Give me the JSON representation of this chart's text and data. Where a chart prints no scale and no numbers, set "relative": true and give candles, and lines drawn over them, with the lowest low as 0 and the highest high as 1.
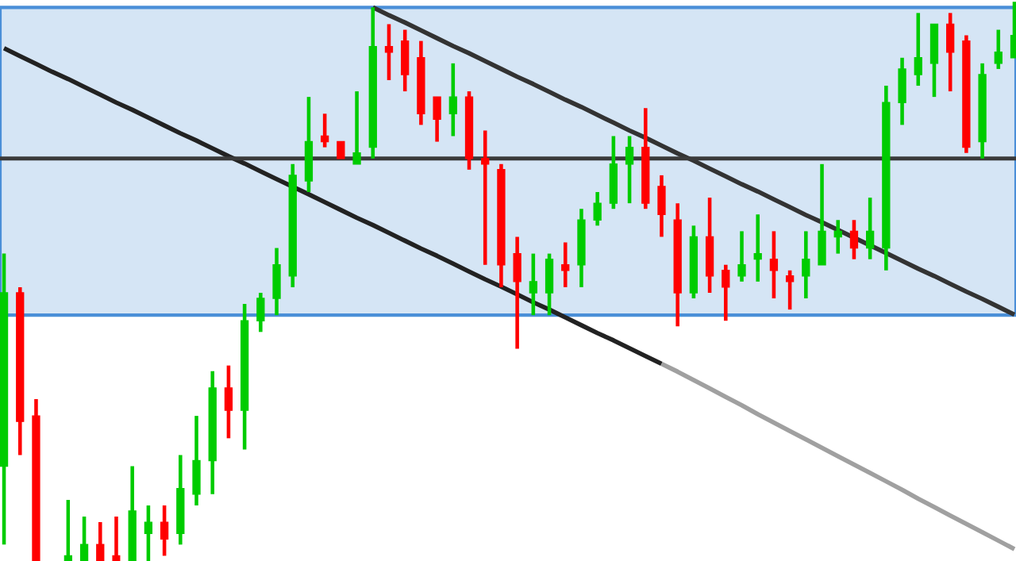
{
  "chart_data": {
    "type": "candlestick",
    "relative": true,
    "categories": [
      null,
      null,
      null,
      null,
      null,
      null,
      null,
      null,
      null,
      null,
      null,
      null,
      null,
      null,
      null,
      null,
      null,
      null,
      null,
      null,
      null,
      null,
      null,
      null,
      null,
      null,
      null,
      null,
      null,
      null,
      null,
      null,
      null,
      null,
      null,
      null,
      null,
      null,
      null,
      null,
      null,
      null,
      null,
      null,
      null,
      null,
      null,
      null,
      null,
      null,
      null,
      null,
      null,
      null,
      null,
      null,
      null,
      null,
      null,
      null,
      null,
      null,
      null,
      null
    ],
    "ohlc": [
      [
        0.17,
        0.55,
        0.03,
        0.48
      ],
      [
        0.48,
        0.49,
        0.19,
        0.25
      ],
      [
        0.26,
        0.29,
        0,
        0
      ],
      null,
      [
        0,
        0.11,
        0,
        0.01
      ],
      [
        0,
        0.08,
        0,
        0.03
      ],
      [
        0.03,
        0.07,
        0,
        0
      ],
      [
        0.01,
        0.08,
        0,
        0
      ],
      [
        0,
        0.17,
        0,
        0.09
      ],
      [
        0.05,
        0.1,
        0,
        0.07
      ],
      [
        0.07,
        0.1,
        0.01,
        0.04
      ],
      [
        0.05,
        0.19,
        0.03,
        0.13
      ],
      [
        0.12,
        0.26,
        0.1,
        0.18
      ],
      [
        0.18,
        0.34,
        0.12,
        0.31
      ],
      [
        0.31,
        0.35,
        0.22,
        0.27
      ],
      [
        0.27,
        0.46,
        0.2,
        0.43
      ],
      [
        0.43,
        0.48,
        0.41,
        0.47
      ],
      [
        0.47,
        0.56,
        0.44,
        0.53
      ],
      [
        0.51,
        0.71,
        0.49,
        0.69
      ],
      [
        0.68,
        0.83,
        0.66,
        0.75
      ],
      [
        0.76,
        0.8,
        0.74,
        0.75
      ],
      [
        0.75,
        0.75,
        0.72,
        0.72
      ],
      [
        0.71,
        0.84,
        0.71,
        0.73
      ],
      [
        0.74,
        0.99,
        0.72,
        0.92
      ],
      [
        0.92,
        0.96,
        0.86,
        0.91
      ],
      [
        0.93,
        0.95,
        0.84,
        0.87
      ],
      [
        0.9,
        0.93,
        0.78,
        0.8
      ],
      [
        0.83,
        0.83,
        0.75,
        0.79
      ],
      [
        0.8,
        0.89,
        0.76,
        0.83
      ],
      [
        0.83,
        0.84,
        0.7,
        0.72
      ],
      [
        0.72,
        0.77,
        0.53,
        0.71
      ],
      [
        0.7,
        0.71,
        0.49,
        0.53
      ],
      [
        0.55,
        0.58,
        0.38,
        0.5
      ],
      [
        0.48,
        0.55,
        0.44,
        0.5
      ],
      [
        0.48,
        0.55,
        0.44,
        0.54
      ],
      [
        0.53,
        0.57,
        0.49,
        0.52
      ],
      [
        0.53,
        0.63,
        0.49,
        0.61
      ],
      [
        0.61,
        0.66,
        0.6,
        0.64
      ],
      [
        0.64,
        0.76,
        0.63,
        0.71
      ],
      [
        0.71,
        0.76,
        0.64,
        0.74
      ],
      [
        0.74,
        0.81,
        0.63,
        0.64
      ],
      [
        0.67,
        0.69,
        0.58,
        0.62
      ],
      [
        0.61,
        0.64,
        0.42,
        0.48
      ],
      [
        0.48,
        0.6,
        0.47,
        0.58
      ],
      [
        0.58,
        0.65,
        0.48,
        0.51
      ],
      [
        0.52,
        0.53,
        0.43,
        0.49
      ],
      [
        0.51,
        0.59,
        0.5,
        0.53
      ],
      [
        0.54,
        0.62,
        0.5,
        0.55
      ],
      [
        0.54,
        0.59,
        0.47,
        0.52
      ],
      [
        0.51,
        0.52,
        0.45,
        0.5
      ],
      [
        0.51,
        0.59,
        0.47,
        0.54
      ],
      [
        0.53,
        0.71,
        0.53,
        0.59
      ],
      [
        0.58,
        0.61,
        0.55,
        0.59
      ],
      [
        0.59,
        0.61,
        0.54,
        0.56
      ],
      [
        0.56,
        0.65,
        0.54,
        0.59
      ],
      [
        0.56,
        0.85,
        0.52,
        0.82
      ],
      [
        0.82,
        0.9,
        0.78,
        0.88
      ],
      [
        0.87,
        0.98,
        0.85,
        0.9
      ],
      [
        0.89,
        0.96,
        0.83,
        0.96
      ],
      [
        0.96,
        0.98,
        0.84,
        0.91
      ],
      [
        0.93,
        0.94,
        0.73,
        0.74
      ],
      [
        0.75,
        0.89,
        0.72,
        0.87
      ],
      [
        0.89,
        0.95,
        0.88,
        0.91
      ],
      [
        0.9,
        1.0,
        0.9,
        0.94
      ]
    ],
    "colors": [
      "#00cc00",
      "#ff0000",
      "#ff0000",
      null,
      "#00cc00",
      "#00cc00",
      "#ff0000",
      "#ff0000",
      "#00cc00",
      "#00cc00",
      "#ff0000",
      "#00cc00",
      "#00cc00",
      "#00cc00",
      "#ff0000",
      "#00cc00",
      "#00cc00",
      "#00cc00",
      "#00cc00",
      "#00cc00",
      "#ff0000",
      "#ff0000",
      "#00cc00",
      "#00cc00",
      "#ff0000",
      "#ff0000",
      "#ff0000",
      "#ff0000",
      "#00cc00",
      "#ff0000",
      "#ff0000",
      "#ff0000",
      "#ff0000",
      "#00cc00",
      "#00cc00",
      "#ff0000",
      "#00cc00",
      "#00cc00",
      "#00cc00",
      "#00cc00",
      "#ff0000",
      "#ff0000",
      "#ff0000",
      "#00cc00",
      "#ff0000",
      "#ff0000",
      "#00cc00",
      "#00cc00",
      "#ff0000",
      "#ff0000",
      "#00cc00",
      "#00cc00",
      "#00cc00",
      "#ff0000",
      "#00cc00",
      "#00cc00",
      "#00cc00",
      "#00cc00",
      "#00cc00",
      "#ff0000",
      "#ff0000",
      "#00cc00",
      "#00cc00",
      "#00cc00"
    ],
    "series": [
      {
        "type": "line",
        "color": "#222222",
        "values": [
          0.917,
          0.903,
          0.889,
          0.875,
          0.862,
          0.848,
          0.834,
          0.82,
          0.807,
          0.793,
          0.779,
          0.765,
          0.752,
          0.738,
          0.724,
          0.711,
          0.697,
          0.683,
          null,
          0.656,
          0.642,
          0.628,
          0.614,
          0.601,
          0.587,
          0.573,
          0.559,
          0.546,
          0.532,
          0.518,
          0.504,
          0.491,
          0.477,
          0.463,
          0.45,
          0.436,
          0.422,
          0.408,
          0.395,
          0.381,
          0.367,
          0.353,
          null,
          null,
          null,
          null,
          null,
          null,
          null,
          null,
          null,
          null,
          null,
          null,
          null,
          null,
          null,
          null,
          null,
          null,
          null,
          null,
          null,
          null
        ]
      },
      {
        "type": "line",
        "color": "#a0a0a0",
        "values": [
          null,
          null,
          null,
          null,
          null,
          null,
          null,
          null,
          null,
          null,
          null,
          null,
          null,
          null,
          null,
          null,
          null,
          null,
          null,
          null,
          null,
          null,
          null,
          null,
          null,
          null,
          null,
          null,
          null,
          null,
          null,
          null,
          null,
          null,
          null,
          null,
          null,
          null,
          null,
          null,
          null,
          0.353,
          0.339,
          0.324,
          0.309,
          0.294,
          0.279,
          0.263,
          0.248,
          0.233,
          0.218,
          0.203,
          0.188,
          0.173,
          0.158,
          0.143,
          0.128,
          0.112,
          0.097,
          0.082,
          0.067,
          0.052,
          0.037,
          0.022
        ]
      },
      {
        "type": "line",
        "color": "#333333",
        "values": [
          null,
          null,
          null,
          null,
          null,
          null,
          null,
          null,
          null,
          null,
          null,
          null,
          null,
          null,
          null,
          null,
          null,
          null,
          null,
          null,
          null,
          null,
          null,
          0.99,
          0.976,
          0.963,
          0.949,
          0.935,
          0.921,
          0.908,
          0.894,
          0.88,
          0.866,
          0.853,
          0.839,
          0.825,
          0.812,
          0.798,
          0.784,
          0.77,
          0.757,
          0.743,
          0.729,
          0.716,
          0.702,
          0.688,
          0.674,
          0.661,
          0.647,
          0.633,
          0.619,
          0.606,
          null,
          null,
          null,
          0.551,
          0.537,
          0.523,
          0.51,
          0.496,
          0.482,
          0.469,
          0.455,
          0.441
        ]
      }
    ],
    "ref_lines": [
      {
        "axis": "y",
        "value": 0.72,
        "color": "#3a3a3a"
      }
    ],
    "bands": [
      {
        "axis": "y",
        "from": 0.44,
        "to": 0.99,
        "color": "#d5e5f5"
      }
    ]
  }
}
